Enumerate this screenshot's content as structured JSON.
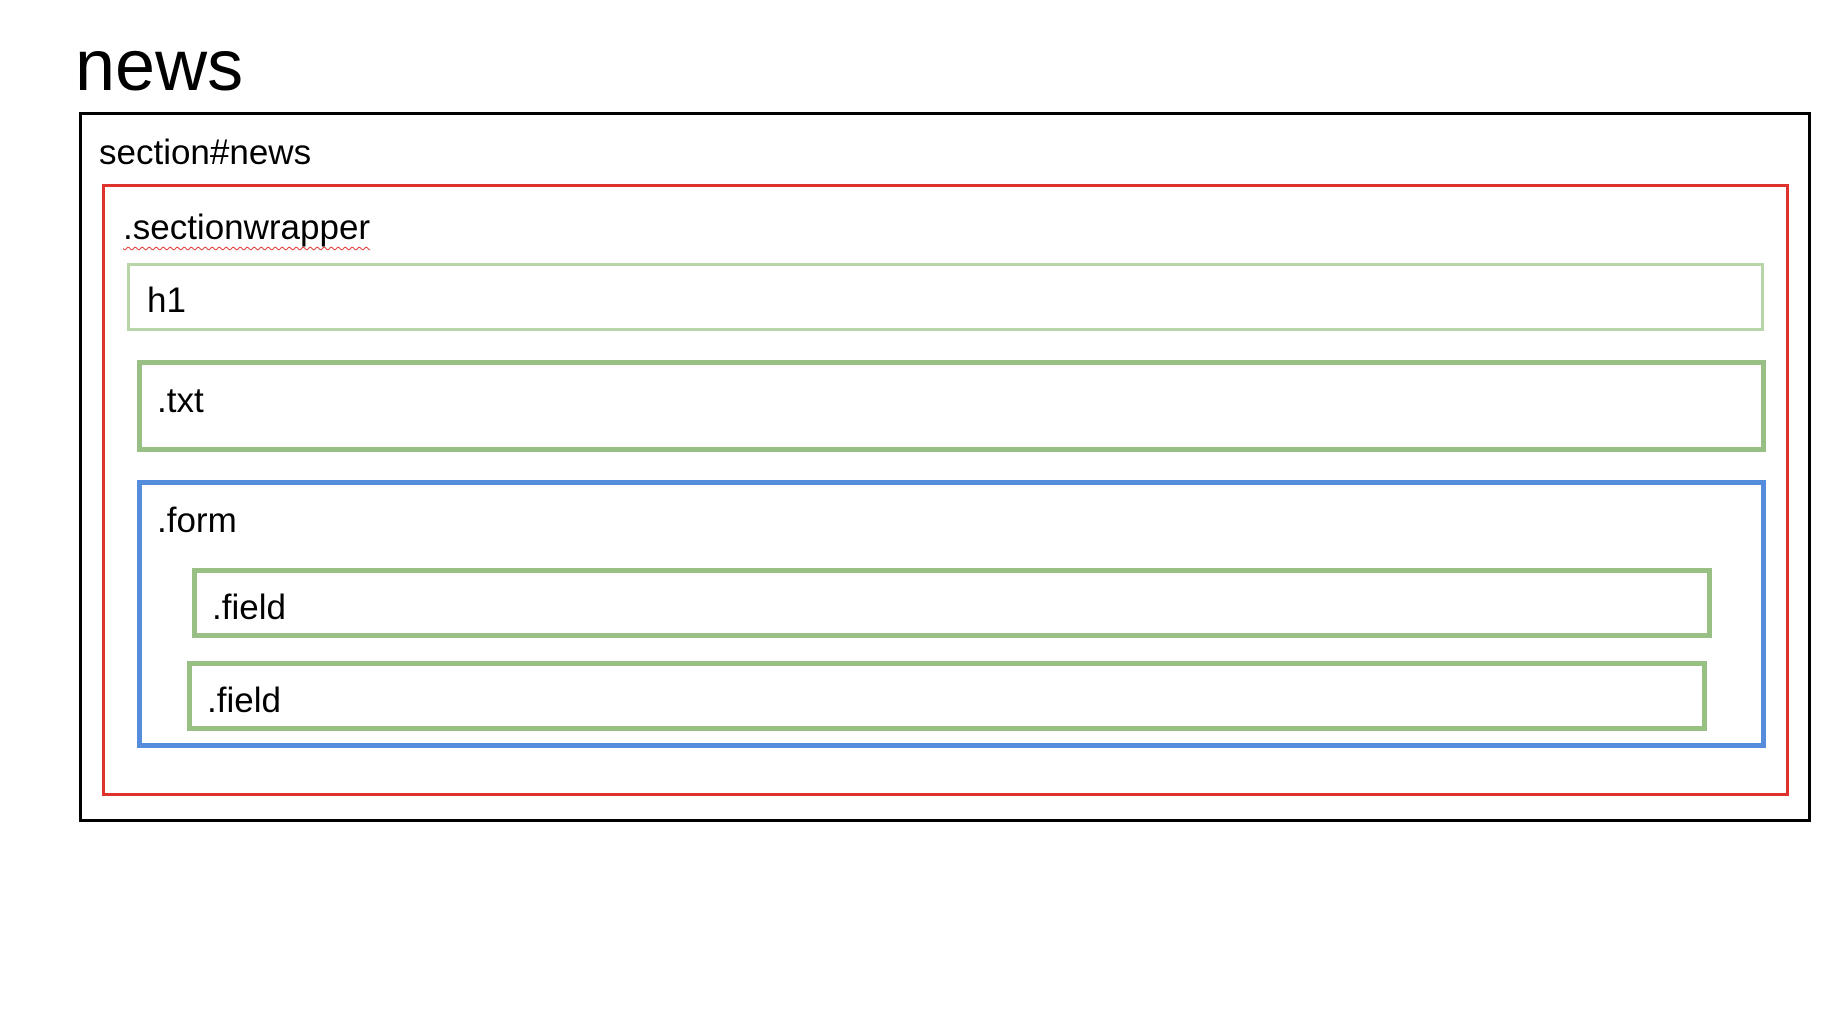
{
  "title": "news",
  "boxes": {
    "section": {
      "label": "section#news",
      "color": "#000000"
    },
    "wrapper": {
      "label": ".sectionwrapper",
      "color": "#e0322d"
    },
    "h1": {
      "label": "h1",
      "color": "#b7d5a8"
    },
    "txt": {
      "label": ".txt",
      "color": "#98c084"
    },
    "form": {
      "label": ".form",
      "color": "#558cdc"
    },
    "field_1": {
      "label": ".field",
      "color": "#98c084"
    },
    "field_2": {
      "label": ".field",
      "color": "#98c084"
    }
  }
}
